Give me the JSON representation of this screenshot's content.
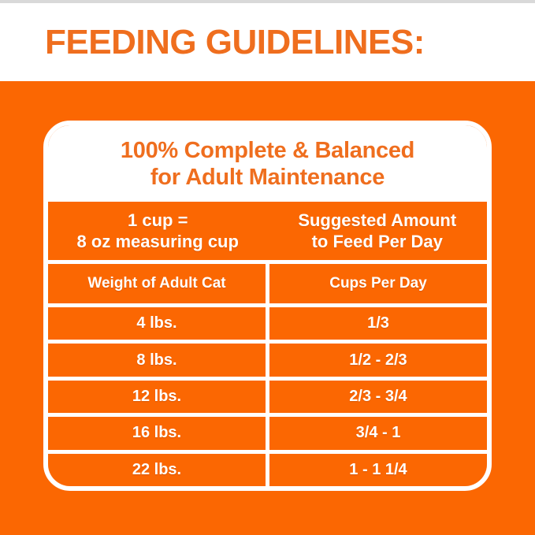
{
  "page": {
    "title": "FEEDING GUIDELINES:",
    "colors": {
      "background_orange": "#FB6702",
      "accent_text_orange": "#EF6E1E",
      "white": "#FFFFFF",
      "top_strip_gray": "#D9D9D9"
    }
  },
  "card": {
    "header_line1": "100% Complete & Balanced",
    "header_line2": "for Adult Maintenance",
    "measure": {
      "line1": "1 cup =",
      "line2": "8 oz measuring cup"
    },
    "suggested": {
      "line1": "Suggested Amount",
      "line2": "to Feed Per Day"
    },
    "columns": [
      "Weight of Adult Cat",
      "Cups Per Day"
    ],
    "rows": [
      {
        "weight": "4 lbs.",
        "cups": "1/3"
      },
      {
        "weight": "8 lbs.",
        "cups": "1/2 - 2/3"
      },
      {
        "weight": "12 lbs.",
        "cups": "2/3 - 3/4"
      },
      {
        "weight": "16 lbs.",
        "cups": "3/4 - 1"
      },
      {
        "weight": "22 lbs.",
        "cups": "1 - 1 1/4"
      }
    ]
  }
}
